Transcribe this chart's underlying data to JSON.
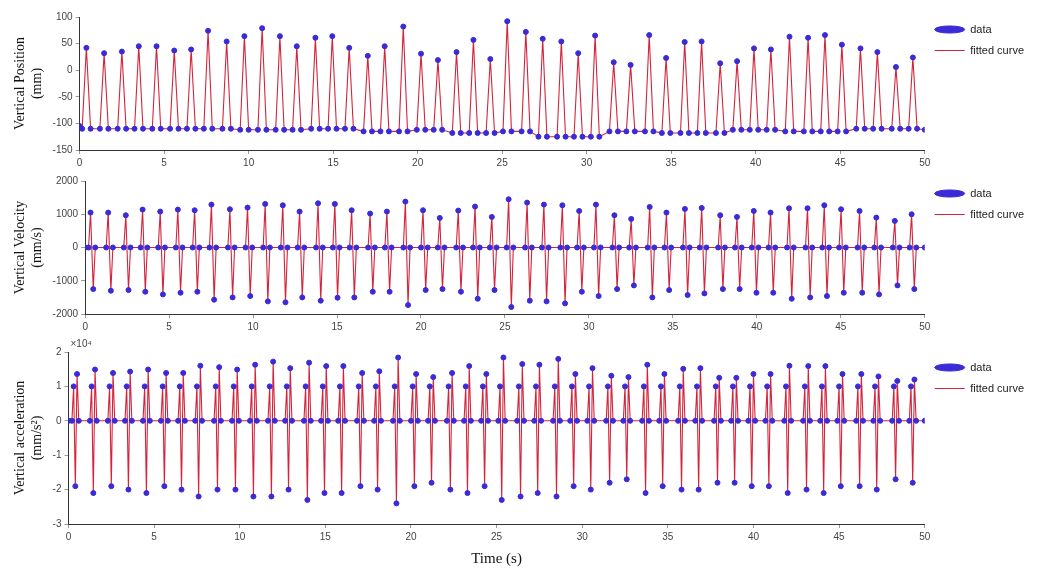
{
  "chart_data": [
    {
      "type": "line",
      "ylabel": "Vertical Position (mm)",
      "xlim": [
        0,
        50
      ],
      "xticks": [
        0,
        5,
        10,
        15,
        20,
        25,
        30,
        35,
        40,
        45,
        50
      ],
      "ylim": [
        -150,
        100
      ],
      "yticks": [
        -150,
        -100,
        -50,
        0,
        50,
        100
      ],
      "legend": "top right",
      "x": [
        0,
        0.15,
        0.4,
        0.65,
        1.2,
        1.45,
        1.7,
        2.25,
        2.5,
        2.75,
        3.25,
        3.5,
        3.75,
        4.3,
        4.55,
        4.8,
        5.35,
        5.6,
        5.85,
        6.35,
        6.6,
        6.85,
        7.35,
        7.6,
        7.85,
        8.45,
        8.7,
        8.95,
        9.5,
        9.75,
        10,
        10.55,
        10.8,
        11.05,
        11.6,
        11.85,
        12.1,
        12.6,
        12.85,
        13.1,
        13.7,
        13.95,
        14.2,
        14.7,
        14.95,
        15.2,
        15.7,
        15.95,
        16.2,
        16.8,
        17.05,
        17.3,
        17.8,
        18.05,
        18.3,
        18.9,
        19.15,
        19.4,
        19.95,
        20.2,
        20.45,
        20.95,
        21.2,
        21.45,
        22.05,
        22.3,
        22.55,
        23.05,
        23.3,
        23.55,
        24.05,
        24.3,
        24.55,
        25.05,
        25.3,
        25.55,
        26.15,
        26.4,
        26.65,
        27.15,
        27.4,
        27.65,
        28.25,
        28.5,
        28.75,
        29.25,
        29.5,
        29.75,
        30.25,
        30.5,
        30.75,
        31.35,
        31.6,
        31.85,
        32.35,
        32.6,
        32.85,
        33.45,
        33.7,
        33.95,
        34.45,
        34.7,
        34.95,
        35.55,
        35.8,
        36.05,
        36.55,
        36.8,
        37.05,
        37.65,
        37.9,
        38.15,
        38.65,
        38.9,
        39.15,
        39.65,
        39.9,
        40.15,
        40.65,
        40.9,
        41.15,
        41.75,
        42,
        42.25,
        42.85,
        43.1,
        43.35,
        43.85,
        44.1,
        44.35,
        44.85,
        45.1,
        45.35,
        45.95,
        46.2,
        46.45,
        46.95,
        47.2,
        47.45,
        48.05,
        48.3,
        48.55,
        49.05,
        49.3,
        49.55,
        50
      ],
      "series": [
        {
          "name": "data",
          "type": "scatter",
          "marker": "circle",
          "color": "#3a2bd6",
          "values": [
            -105,
            -110,
            42,
            -110,
            -110,
            32,
            -110,
            -110,
            35,
            -110,
            -110,
            45,
            -110,
            -110,
            45,
            -110,
            -110,
            37,
            -110,
            -110,
            39,
            -110,
            -110,
            74,
            -110,
            -110,
            54,
            -110,
            -112,
            64,
            -112,
            -112,
            79,
            -112,
            -112,
            64,
            -112,
            -112,
            45,
            -112,
            -110,
            61,
            -110,
            -110,
            64,
            -110,
            -110,
            42,
            -110,
            -115,
            27,
            -115,
            -115,
            45,
            -115,
            -115,
            82,
            -115,
            -112,
            31,
            -112,
            -112,
            19,
            -112,
            -118,
            34,
            -118,
            -118,
            57,
            -118,
            -118,
            21,
            -118,
            -115,
            92,
            -115,
            -115,
            72,
            -115,
            -125,
            59,
            -125,
            -125,
            54,
            -125,
            -125,
            32,
            -125,
            -125,
            65,
            -125,
            -115,
            15,
            -115,
            -115,
            10,
            -115,
            -115,
            66,
            -115,
            -118,
            23,
            -118,
            -118,
            53,
            -118,
            -118,
            54,
            -118,
            -118,
            13,
            -118,
            -112,
            17,
            -112,
            -112,
            41,
            -112,
            -112,
            39,
            -112,
            -115,
            63,
            -115,
            -115,
            61,
            -115,
            -115,
            66,
            -115,
            -115,
            48,
            -115,
            -110,
            41,
            -110,
            -110,
            34,
            -110,
            -110,
            6,
            -110,
            -110,
            24,
            -110,
            -112
          ]
        },
        {
          "name": "fitted curve",
          "type": "line",
          "line_style": "solid",
          "color": "#d4243c",
          "values": [
            -105,
            -110,
            42,
            -110,
            -110,
            32,
            -110,
            -110,
            35,
            -110,
            -110,
            45,
            -110,
            -110,
            45,
            -110,
            -110,
            37,
            -110,
            -110,
            39,
            -110,
            -110,
            74,
            -110,
            -110,
            54,
            -110,
            -112,
            64,
            -112,
            -112,
            79,
            -112,
            -112,
            64,
            -112,
            -112,
            45,
            -112,
            -110,
            61,
            -110,
            -110,
            64,
            -110,
            -110,
            42,
            -110,
            -115,
            27,
            -115,
            -115,
            45,
            -115,
            -115,
            82,
            -115,
            -112,
            31,
            -112,
            -112,
            19,
            -112,
            -118,
            34,
            -118,
            -118,
            57,
            -118,
            -118,
            21,
            -118,
            -115,
            92,
            -115,
            -115,
            72,
            -115,
            -125,
            59,
            -125,
            -125,
            54,
            -125,
            -125,
            32,
            -125,
            -125,
            65,
            -125,
            -115,
            15,
            -115,
            -115,
            10,
            -115,
            -115,
            66,
            -115,
            -118,
            23,
            -118,
            -118,
            53,
            -118,
            -118,
            54,
            -118,
            -118,
            13,
            -118,
            -112,
            17,
            -112,
            -112,
            41,
            -112,
            -112,
            39,
            -112,
            -115,
            63,
            -115,
            -115,
            61,
            -115,
            -115,
            66,
            -115,
            -115,
            48,
            -115,
            -110,
            41,
            -110,
            -110,
            34,
            -110,
            -110,
            6,
            -110,
            -110,
            24,
            -110,
            -112
          ]
        }
      ]
    },
    {
      "type": "line",
      "ylabel": "Vertical Velocity (mm/s)",
      "xlim": [
        0,
        50
      ],
      "xticks": [
        0,
        5,
        10,
        15,
        20,
        25,
        30,
        35,
        40,
        45,
        50
      ],
      "ylim": [
        -2000,
        2000
      ],
      "yticks": [
        -2000,
        -1000,
        0,
        1000,
        2000
      ],
      "legend": "top right",
      "x": [
        0,
        0.2,
        0.32,
        0.48,
        0.6,
        1.25,
        1.37,
        1.53,
        1.65,
        2.3,
        2.42,
        2.58,
        2.7,
        3.3,
        3.42,
        3.58,
        3.7,
        4.35,
        4.47,
        4.63,
        4.75,
        5.4,
        5.52,
        5.68,
        5.8,
        6.4,
        6.52,
        6.68,
        6.8,
        7.4,
        7.52,
        7.68,
        7.8,
        8.5,
        8.62,
        8.78,
        8.9,
        9.55,
        9.67,
        9.83,
        9.95,
        10.6,
        10.72,
        10.88,
        11,
        11.65,
        11.77,
        11.93,
        12.05,
        12.65,
        12.77,
        12.93,
        13.05,
        13.75,
        13.87,
        14.03,
        14.15,
        14.75,
        14.87,
        15.03,
        15.15,
        15.75,
        15.87,
        16.03,
        16.15,
        16.85,
        16.97,
        17.13,
        17.25,
        17.85,
        17.97,
        18.13,
        18.25,
        18.95,
        19.07,
        19.23,
        19.35,
        20,
        20.12,
        20.28,
        20.4,
        21,
        21.12,
        21.28,
        21.4,
        22.1,
        22.22,
        22.38,
        22.5,
        23.1,
        23.22,
        23.38,
        23.5,
        24.1,
        24.22,
        24.38,
        24.5,
        25.1,
        25.22,
        25.38,
        25.5,
        26.2,
        26.32,
        26.48,
        26.6,
        27.2,
        27.32,
        27.48,
        27.6,
        28.3,
        28.42,
        28.58,
        28.7,
        29.3,
        29.42,
        29.58,
        29.7,
        30.3,
        30.42,
        30.58,
        30.7,
        31.4,
        31.52,
        31.68,
        31.8,
        32.4,
        32.52,
        32.68,
        32.8,
        33.5,
        33.62,
        33.78,
        33.9,
        34.5,
        34.62,
        34.78,
        34.9,
        35.6,
        35.72,
        35.88,
        36,
        36.6,
        36.72,
        36.88,
        37,
        37.7,
        37.82,
        37.98,
        38.1,
        38.7,
        38.82,
        38.98,
        39.1,
        39.7,
        39.82,
        39.98,
        40.1,
        40.7,
        40.82,
        40.98,
        41.1,
        41.8,
        41.92,
        42.08,
        42.2,
        42.9,
        43.02,
        43.18,
        43.3,
        43.9,
        44.02,
        44.18,
        44.3,
        44.9,
        45.02,
        45.18,
        45.3,
        46,
        46.12,
        46.28,
        46.4,
        47,
        47.12,
        47.28,
        47.4,
        48.1,
        48.22,
        48.38,
        48.5,
        49.1,
        49.22,
        49.38,
        49.5,
        50
      ],
      "series": [
        {
          "name": "data",
          "type": "scatter",
          "marker": "circle",
          "color": "#3a2bd6",
          "values": [
            0,
            0,
            1050,
            -1250,
            0,
            0,
            1050,
            -1300,
            0,
            0,
            970,
            -1280,
            0,
            0,
            1140,
            -1330,
            0,
            0,
            1080,
            -1410,
            0,
            0,
            1140,
            -1360,
            0,
            0,
            1120,
            -1330,
            0,
            0,
            1290,
            -1570,
            0,
            0,
            1150,
            -1500,
            0,
            0,
            1200,
            -1460,
            0,
            0,
            1310,
            -1620,
            0,
            0,
            1270,
            -1650,
            0,
            0,
            1080,
            -1500,
            0,
            0,
            1330,
            -1600,
            0,
            0,
            1310,
            -1510,
            0,
            0,
            1120,
            -1500,
            0,
            0,
            1020,
            -1330,
            0,
            0,
            1080,
            -1330,
            0,
            0,
            1380,
            -1730,
            0,
            0,
            1120,
            -1280,
            0,
            0,
            890,
            -1250,
            0,
            0,
            1110,
            -1330,
            0,
            0,
            1230,
            -1540,
            0,
            0,
            920,
            -1280,
            0,
            0,
            1450,
            -1790,
            0,
            0,
            1350,
            -1600,
            0,
            0,
            1290,
            -1620,
            0,
            0,
            1270,
            -1680,
            0,
            0,
            1100,
            -1330,
            0,
            0,
            1290,
            -1460,
            0,
            0,
            970,
            -1250,
            0,
            0,
            860,
            -1140,
            0,
            0,
            1220,
            -1500,
            0,
            0,
            1050,
            -1280,
            0,
            0,
            1160,
            -1430,
            0,
            0,
            1190,
            -1380,
            0,
            0,
            970,
            -1250,
            0,
            0,
            920,
            -1250,
            0,
            0,
            1100,
            -1360,
            0,
            0,
            1050,
            -1360,
            0,
            0,
            1180,
            -1540,
            0,
            0,
            1180,
            -1500,
            0,
            0,
            1270,
            -1460,
            0,
            0,
            1150,
            -1360,
            0,
            0,
            1100,
            -1360,
            0,
            0,
            900,
            -1410,
            0,
            0,
            800,
            -1140,
            0,
            0,
            1000,
            -1250,
            0,
            0
          ]
        },
        {
          "name": "fitted curve",
          "type": "line",
          "line_style": "solid",
          "color": "#d4243c",
          "values": [
            0,
            0,
            1050,
            -1250,
            0,
            0,
            1050,
            -1300,
            0,
            0,
            970,
            -1280,
            0,
            0,
            1140,
            -1330,
            0,
            0,
            1080,
            -1410,
            0,
            0,
            1140,
            -1360,
            0,
            0,
            1120,
            -1330,
            0,
            0,
            1290,
            -1570,
            0,
            0,
            1150,
            -1500,
            0,
            0,
            1200,
            -1460,
            0,
            0,
            1310,
            -1620,
            0,
            0,
            1270,
            -1650,
            0,
            0,
            1080,
            -1500,
            0,
            0,
            1330,
            -1600,
            0,
            0,
            1310,
            -1510,
            0,
            0,
            1120,
            -1500,
            0,
            0,
            1020,
            -1330,
            0,
            0,
            1080,
            -1330,
            0,
            0,
            1380,
            -1730,
            0,
            0,
            1120,
            -1280,
            0,
            0,
            890,
            -1250,
            0,
            0,
            1110,
            -1330,
            0,
            0,
            1230,
            -1540,
            0,
            0,
            920,
            -1280,
            0,
            0,
            1450,
            -1790,
            0,
            0,
            1350,
            -1600,
            0,
            0,
            1290,
            -1620,
            0,
            0,
            1270,
            -1680,
            0,
            0,
            1100,
            -1330,
            0,
            0,
            1290,
            -1460,
            0,
            0,
            970,
            -1250,
            0,
            0,
            860,
            -1140,
            0,
            0,
            1220,
            -1500,
            0,
            0,
            1050,
            -1280,
            0,
            0,
            1160,
            -1430,
            0,
            0,
            1190,
            -1380,
            0,
            0,
            970,
            -1250,
            0,
            0,
            920,
            -1250,
            0,
            0,
            1100,
            -1360,
            0,
            0,
            1050,
            -1360,
            0,
            0,
            1180,
            -1540,
            0,
            0,
            1180,
            -1500,
            0,
            0,
            1270,
            -1460,
            0,
            0,
            1150,
            -1360,
            0,
            0,
            1100,
            -1360,
            0,
            0,
            900,
            -1410,
            0,
            0,
            800,
            -1140,
            0,
            0,
            1000,
            -1250,
            0,
            0
          ]
        }
      ]
    },
    {
      "type": "line",
      "ylabel": "Vertical acceleration (mm/s²)",
      "xlabel": "Time (s)",
      "annotations": [
        "×10⁴"
      ],
      "xlim": [
        0,
        50
      ],
      "xticks": [
        0,
        5,
        10,
        15,
        20,
        25,
        30,
        35,
        40,
        45,
        50
      ],
      "ylim": [
        -3,
        2
      ],
      "yticks": [
        -3,
        -2,
        -1,
        0,
        1,
        2
      ],
      "legend": "top right",
      "x": [
        0,
        0.2,
        0.3,
        0.4,
        0.5,
        0.6,
        1.25,
        1.35,
        1.45,
        1.55,
        1.65,
        2.3,
        2.4,
        2.5,
        2.6,
        2.7,
        3.3,
        3.4,
        3.5,
        3.6,
        3.7,
        4.35,
        4.45,
        4.55,
        4.65,
        4.75,
        5.4,
        5.5,
        5.6,
        5.7,
        5.8,
        6.4,
        6.5,
        6.6,
        6.7,
        6.8,
        7.4,
        7.5,
        7.6,
        7.7,
        7.8,
        8.5,
        8.6,
        8.7,
        8.8,
        8.9,
        9.55,
        9.65,
        9.75,
        9.85,
        9.95,
        10.6,
        10.7,
        10.8,
        10.9,
        11,
        11.65,
        11.75,
        11.85,
        11.95,
        12.05,
        12.65,
        12.75,
        12.85,
        12.95,
        13.05,
        13.75,
        13.85,
        13.95,
        14.05,
        14.15,
        14.75,
        14.85,
        14.95,
        15.05,
        15.15,
        15.75,
        15.85,
        15.95,
        16.05,
        16.15,
        16.85,
        16.95,
        17.05,
        17.15,
        17.25,
        17.85,
        17.95,
        18.05,
        18.15,
        18.25,
        18.95,
        19.05,
        19.15,
        19.25,
        19.35,
        20,
        20.1,
        20.2,
        20.3,
        20.4,
        21,
        21.1,
        21.2,
        21.3,
        21.4,
        22.1,
        22.2,
        22.3,
        22.4,
        22.5,
        23.1,
        23.2,
        23.3,
        23.4,
        23.5,
        24.1,
        24.2,
        24.3,
        24.4,
        24.5,
        25.1,
        25.2,
        25.3,
        25.4,
        25.5,
        26.2,
        26.3,
        26.4,
        26.5,
        26.6,
        27.2,
        27.3,
        27.4,
        27.5,
        27.6,
        28.3,
        28.4,
        28.5,
        28.6,
        28.7,
        29.3,
        29.4,
        29.5,
        29.6,
        29.7,
        30.3,
        30.4,
        30.5,
        30.6,
        30.7,
        31.4,
        31.5,
        31.6,
        31.7,
        31.8,
        32.4,
        32.5,
        32.6,
        32.7,
        32.8,
        33.5,
        33.6,
        33.7,
        33.8,
        33.9,
        34.5,
        34.6,
        34.7,
        34.8,
        34.9,
        35.6,
        35.7,
        35.8,
        35.9,
        36,
        36.6,
        36.7,
        36.8,
        36.9,
        37,
        37.7,
        37.8,
        37.9,
        38,
        38.1,
        38.7,
        38.8,
        38.9,
        39,
        39.1,
        39.7,
        39.8,
        39.9,
        40,
        40.1,
        40.7,
        40.8,
        40.9,
        41,
        41.1,
        41.8,
        41.9,
        42,
        42.1,
        42.2,
        42.9,
        43,
        43.1,
        43.2,
        43.3,
        43.9,
        44,
        44.1,
        44.2,
        44.3,
        44.9,
        45,
        45.1,
        45.2,
        45.3,
        46,
        46.1,
        46.2,
        46.3,
        46.4,
        47,
        47.1,
        47.2,
        47.3,
        47.4,
        48.1,
        48.2,
        48.3,
        48.4,
        48.5,
        49.1,
        49.2,
        49.3,
        49.4,
        49.5,
        50
      ],
      "series": [
        {
          "name": "data",
          "type": "scatter",
          "marker": "circle",
          "color": "#3a2bd6",
          "values": [
            0,
            0,
            1,
            -1.9,
            1.36,
            0,
            0,
            1,
            -2.1,
            1.49,
            0,
            0,
            1,
            -1.9,
            1.39,
            0,
            0,
            1,
            -2,
            1.43,
            0,
            0,
            1,
            -2.1,
            1.49,
            0,
            0,
            1,
            -1.9,
            1.39,
            0,
            0,
            1,
            -2,
            1.39,
            0,
            0,
            1,
            -2.2,
            1.6,
            0,
            0,
            1,
            -2,
            1.56,
            0,
            0,
            1,
            -2,
            1.49,
            0,
            0,
            1,
            -2.2,
            1.63,
            0,
            0,
            1,
            -2.2,
            1.72,
            0,
            0,
            1,
            -2,
            1.53,
            0,
            0,
            1,
            -2.3,
            1.69,
            0,
            0,
            1,
            -2.1,
            1.59,
            0,
            0,
            1,
            -2.1,
            1.59,
            0,
            0,
            1,
            -1.9,
            1.39,
            0,
            0,
            1,
            -2,
            1.44,
            0,
            0,
            1,
            -2.4,
            1.84,
            0,
            0,
            1,
            -1.9,
            1.36,
            0,
            0,
            1,
            -1.8,
            1.27,
            0,
            0,
            1,
            -2,
            1.39,
            0,
            0,
            1,
            -2.1,
            1.59,
            0,
            0,
            1,
            -1.9,
            1.36,
            0,
            0,
            1,
            -2.3,
            1.84,
            0,
            0,
            1,
            -2.2,
            1.65,
            0,
            0,
            1,
            -2.1,
            1.63,
            0,
            0,
            1,
            -2.2,
            1.8,
            0,
            0,
            1,
            -1.9,
            1.36,
            0,
            0,
            1,
            -2,
            1.53,
            0,
            0,
            1,
            -1.8,
            1.31,
            0,
            0,
            1,
            -1.7,
            1.27,
            0,
            0,
            1,
            -2.1,
            1.63,
            0,
            0,
            1,
            -1.9,
            1.36,
            0,
            0,
            1,
            -2,
            1.51,
            0,
            0,
            1,
            -2,
            1.53,
            0,
            0,
            1,
            -1.8,
            1.25,
            0,
            0,
            1,
            -1.8,
            1.25,
            0,
            0,
            1,
            -1.9,
            1.36,
            0,
            0,
            1,
            -1.9,
            1.36,
            0,
            0,
            1,
            -2.1,
            1.6,
            0,
            0,
            1,
            -2,
            1.59,
            0,
            0,
            1,
            -2.1,
            1.59,
            0,
            0,
            1,
            -1.9,
            1.36,
            0,
            0,
            1,
            -1.9,
            1.36,
            0,
            0,
            1,
            -2,
            1.29,
            0,
            0,
            1,
            -1.7,
            1.16,
            0,
            0,
            1,
            -1.8,
            1.2,
            0,
            0
          ]
        },
        {
          "name": "fitted curve",
          "type": "line",
          "line_style": "solid",
          "color": "#d4243c",
          "values": [
            0,
            0,
            1,
            -1.9,
            1.36,
            0,
            0,
            1,
            -2.1,
            1.49,
            0,
            0,
            1,
            -1.9,
            1.39,
            0,
            0,
            1,
            -2,
            1.43,
            0,
            0,
            1,
            -2.1,
            1.49,
            0,
            0,
            1,
            -1.9,
            1.39,
            0,
            0,
            1,
            -2,
            1.39,
            0,
            0,
            1,
            -2.2,
            1.6,
            0,
            0,
            1,
            -2,
            1.56,
            0,
            0,
            1,
            -2,
            1.49,
            0,
            0,
            1,
            -2.2,
            1.63,
            0,
            0,
            1,
            -2.2,
            1.72,
            0,
            0,
            1,
            -2,
            1.53,
            0,
            0,
            1,
            -2.3,
            1.69,
            0,
            0,
            1,
            -2.1,
            1.59,
            0,
            0,
            1,
            -2.1,
            1.59,
            0,
            0,
            1,
            -1.9,
            1.39,
            0,
            0,
            1,
            -2,
            1.44,
            0,
            0,
            1,
            -2.4,
            1.84,
            0,
            0,
            1,
            -1.9,
            1.36,
            0,
            0,
            1,
            -1.8,
            1.27,
            0,
            0,
            1,
            -2,
            1.39,
            0,
            0,
            1,
            -2.1,
            1.59,
            0,
            0,
            1,
            -1.9,
            1.36,
            0,
            0,
            1,
            -2.3,
            1.84,
            0,
            0,
            1,
            -2.2,
            1.65,
            0,
            0,
            1,
            -2.1,
            1.63,
            0,
            0,
            1,
            -2.2,
            1.8,
            0,
            0,
            1,
            -1.9,
            1.36,
            0,
            0,
            1,
            -2,
            1.53,
            0,
            0,
            1,
            -1.8,
            1.31,
            0,
            0,
            1,
            -1.7,
            1.27,
            0,
            0,
            1,
            -2.1,
            1.63,
            0,
            0,
            1,
            -1.9,
            1.36,
            0,
            0,
            1,
            -2,
            1.51,
            0,
            0,
            1,
            -2,
            1.53,
            0,
            0,
            1,
            -1.8,
            1.25,
            0,
            0,
            1,
            -1.8,
            1.25,
            0,
            0,
            1,
            -1.9,
            1.36,
            0,
            0,
            1,
            -1.9,
            1.36,
            0,
            0,
            1,
            -2.1,
            1.6,
            0,
            0,
            1,
            -2,
            1.59,
            0,
            0,
            1,
            -2.1,
            1.59,
            0,
            0,
            1,
            -1.9,
            1.36,
            0,
            0,
            1,
            -1.9,
            1.36,
            0,
            0,
            1,
            -2,
            1.29,
            0,
            0,
            1,
            -1.7,
            1.16,
            0,
            0,
            1,
            -1.8,
            1.2,
            0,
            0
          ]
        }
      ]
    }
  ]
}
